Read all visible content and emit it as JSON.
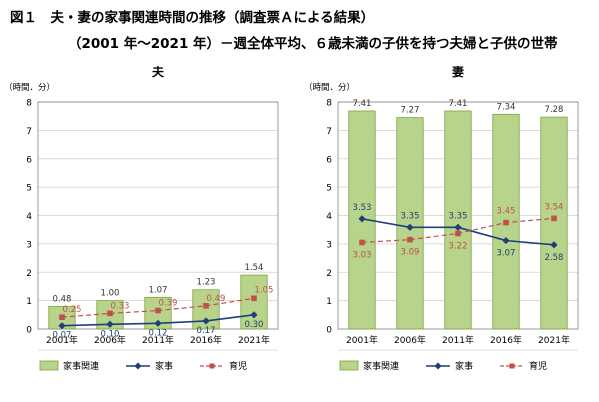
{
  "title": {
    "line1": "図１　夫・妻の家事関連時間の推移（調査票Ａによる結果）",
    "line2": "（2001 年～2021 年）－週全体平均、６歳未満の子供を持つ夫婦と子供の世帯"
  },
  "chart_data": [
    {
      "type": "bar",
      "title": "夫",
      "ylabel": "（時間．分）",
      "ylim": [
        0,
        8
      ],
      "yticks": [
        0,
        1,
        2,
        3,
        4,
        5,
        6,
        7,
        8
      ],
      "categories": [
        "2001年",
        "2006年",
        "2011年",
        "2016年",
        "2021年"
      ],
      "series": [
        {
          "name": "家事関連",
          "type": "bar",
          "values": [
            0.48,
            1.0,
            1.07,
            1.23,
            1.54
          ],
          "labels": [
            "0.48",
            "1.00",
            "1.07",
            "1.23",
            "1.54"
          ]
        },
        {
          "name": "家事",
          "type": "line",
          "values": [
            0.07,
            0.1,
            0.12,
            0.17,
            0.3
          ],
          "labels": [
            "0.07",
            "0.10",
            "0.12",
            "0.17",
            "0.30"
          ]
        },
        {
          "name": "育児",
          "type": "line-dashed",
          "values": [
            0.25,
            0.33,
            0.39,
            0.49,
            1.05
          ],
          "labels": [
            "0.25",
            "0.33",
            "0.39",
            "0.49",
            "1.05"
          ]
        }
      ],
      "grid": true,
      "legend": "bottom"
    },
    {
      "type": "bar",
      "title": "妻",
      "ylabel": "（時間．分）",
      "ylim": [
        0,
        8
      ],
      "yticks": [
        0,
        1,
        2,
        3,
        4,
        5,
        6,
        7,
        8
      ],
      "categories": [
        "2001年",
        "2006年",
        "2011年",
        "2016年",
        "2021年"
      ],
      "series": [
        {
          "name": "家事関連",
          "type": "bar",
          "values": [
            7.41,
            7.27,
            7.41,
            7.34,
            7.28
          ],
          "labels": [
            "7.41",
            "7.27",
            "7.41",
            "7.34",
            "7.28"
          ]
        },
        {
          "name": "家事",
          "type": "line",
          "values": [
            3.53,
            3.35,
            3.35,
            3.07,
            2.58
          ],
          "labels": [
            "3.53",
            "3.35",
            "3.35",
            "3.07",
            "2.58"
          ]
        },
        {
          "name": "育児",
          "type": "line-dashed",
          "values": [
            3.03,
            3.09,
            3.22,
            3.45,
            3.54
          ],
          "labels": [
            "3.03",
            "3.09",
            "3.22",
            "3.45",
            "3.54"
          ]
        }
      ],
      "grid": true,
      "legend": "bottom"
    }
  ],
  "colors": {
    "bar_fill": "#b8d48a",
    "bar_stroke": "#7ea43e",
    "chore_line": "#1f3f7a",
    "childcare_line": "#c0504d",
    "grid": "#d0d0d0",
    "axis": "#7f7f7f"
  }
}
